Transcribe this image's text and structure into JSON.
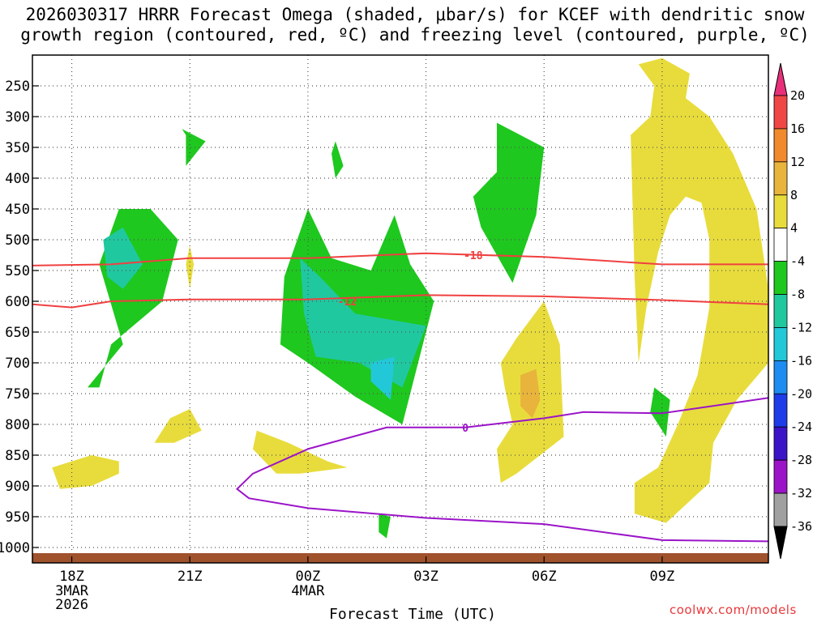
{
  "title_lines": [
    "2026030317 HRRR Forecast Omega (shaded, μbar/s) for KCEF with dendritic snow",
    "growth region (contoured, red, ºC) and freezing level (contoured, purple, ºC)"
  ],
  "credit": "coolwx.com/models",
  "colors": {
    "green": "#1ec81e",
    "teal": "#20c8a0",
    "cyan": "#22c8d8",
    "yellow": "#e8dc3c",
    "gold": "#e8b43c",
    "red_contour": "#f04040",
    "purple_contour": "#9b14c8",
    "terrain": "#a0522d"
  },
  "chart_data": {
    "type": "time-height contour",
    "title": "2026030317 HRRR Forecast Omega (shaded, μbar/s) for KCEF with dendritic snow growth region (contoured, red, ºC) and freezing level (contoured, purple, ºC)",
    "xlabel": "Forecast Time (UTC)",
    "ylabel": "",
    "x_ticks": [
      {
        "hour": 0,
        "label": "18Z",
        "sub": [
          "3MAR",
          "2026"
        ]
      },
      {
        "hour": 3,
        "label": "21Z",
        "sub": []
      },
      {
        "hour": 6,
        "label": "00Z",
        "sub": [
          "4MAR"
        ]
      },
      {
        "hour": 9,
        "label": "03Z",
        "sub": []
      },
      {
        "hour": 12,
        "label": "06Z",
        "sub": []
      },
      {
        "hour": 15,
        "label": "09Z",
        "sub": []
      }
    ],
    "xlim_hours": [
      -1,
      17.7
    ],
    "y_ticks": [
      250,
      300,
      350,
      400,
      450,
      500,
      550,
      600,
      650,
      700,
      750,
      800,
      850,
      900,
      950,
      1000
    ],
    "ylim_hPa": [
      200,
      1025
    ],
    "colorbar": {
      "labels": [
        "20",
        "16",
        "12",
        "8",
        "4",
        "-4",
        "-8",
        "-12",
        "-16",
        "-20",
        "-24",
        "-28",
        "-32",
        "-36"
      ],
      "colors": [
        "#e8307a",
        "#f04646",
        "#f08a2c",
        "#e8b43c",
        "#e8dc3c",
        "#ffffff",
        "#1ec81e",
        "#20c8a0",
        "#22c8d8",
        "#1e8cf0",
        "#1e3ce8",
        "#3c14c8",
        "#9b14c8",
        "#a0a0a0",
        "#000000"
      ]
    },
    "contour_labels": [
      {
        "value": "-18",
        "hour": 10.2,
        "pressure": 525
      },
      {
        "value": "-12",
        "hour": 7.0,
        "pressure": 600
      },
      {
        "value": "0",
        "hour": 10.0,
        "pressure": 805
      }
    ],
    "contours": [
      {
        "name": "-18 C isotherm",
        "points": [
          [
            -1,
            542
          ],
          [
            1,
            540
          ],
          [
            3,
            530
          ],
          [
            6,
            530
          ],
          [
            9,
            522
          ],
          [
            12,
            528
          ],
          [
            15,
            540
          ],
          [
            17.7,
            540
          ]
        ]
      },
      {
        "name": "-12 C isotherm",
        "points": [
          [
            -1,
            605
          ],
          [
            0,
            610
          ],
          [
            1,
            600
          ],
          [
            3,
            597
          ],
          [
            6,
            597
          ],
          [
            9,
            590
          ],
          [
            12,
            592
          ],
          [
            15,
            598
          ],
          [
            17.7,
            605
          ]
        ]
      },
      {
        "name": "0 C freezing level",
        "points": [
          [
            17.7,
            990
          ],
          [
            15,
            988
          ],
          [
            12,
            962
          ],
          [
            9,
            952
          ],
          [
            6,
            936
          ],
          [
            4.5,
            920
          ],
          [
            4.2,
            905
          ],
          [
            4.6,
            880
          ],
          [
            6,
            840
          ],
          [
            8,
            805
          ],
          [
            10,
            805
          ],
          [
            12,
            790
          ],
          [
            13,
            780
          ],
          [
            15,
            782
          ],
          [
            17.7,
            757
          ]
        ]
      }
    ],
    "regions": [
      {
        "name": "-4 region A",
        "color": "green",
        "points": [
          [
            0.4,
            740
          ],
          [
            1.3,
            670
          ],
          [
            0.7,
            540
          ],
          [
            1.2,
            450
          ],
          [
            2.0,
            450
          ],
          [
            2.7,
            500
          ],
          [
            2.3,
            600
          ],
          [
            1.0,
            670
          ],
          [
            0.7,
            740
          ]
        ]
      },
      {
        "name": "-8 region A",
        "color": "teal",
        "points": [
          [
            0.8,
            500
          ],
          [
            1.3,
            480
          ],
          [
            1.8,
            540
          ],
          [
            1.3,
            580
          ],
          [
            0.9,
            560
          ]
        ]
      },
      {
        "name": "-4 region B",
        "color": "green",
        "points": [
          [
            2.8,
            320
          ],
          [
            3.4,
            340
          ],
          [
            2.9,
            380
          ],
          [
            2.9,
            330
          ]
        ]
      },
      {
        "name": "-4 region C",
        "color": "green",
        "points": [
          [
            6.0,
            450
          ],
          [
            6.6,
            530
          ],
          [
            7.6,
            550
          ],
          [
            8.2,
            460
          ],
          [
            8.6,
            540
          ],
          [
            9.2,
            600
          ],
          [
            8.4,
            800
          ],
          [
            7.2,
            755
          ],
          [
            6.0,
            700
          ],
          [
            5.3,
            670
          ],
          [
            5.4,
            560
          ]
        ]
      },
      {
        "name": "-8 region C",
        "color": "teal",
        "points": [
          [
            5.9,
            620
          ],
          [
            5.8,
            530
          ],
          [
            6.3,
            560
          ],
          [
            7.2,
            620
          ],
          [
            9.0,
            640
          ],
          [
            8.4,
            740
          ],
          [
            7.3,
            700
          ],
          [
            6.2,
            690
          ]
        ]
      },
      {
        "name": "-12 region C",
        "color": "cyan",
        "points": [
          [
            7.6,
            700
          ],
          [
            8.2,
            690
          ],
          [
            8.1,
            760
          ],
          [
            7.6,
            730
          ]
        ]
      },
      {
        "name": "-4 region D",
        "color": "green",
        "points": [
          [
            6.7,
            340
          ],
          [
            6.9,
            380
          ],
          [
            6.7,
            400
          ],
          [
            6.6,
            360
          ]
        ]
      },
      {
        "name": "-4 region E",
        "color": "green",
        "points": [
          [
            10.8,
            310
          ],
          [
            12.0,
            350
          ],
          [
            11.8,
            460
          ],
          [
            11.2,
            570
          ],
          [
            10.4,
            480
          ],
          [
            10.2,
            430
          ],
          [
            10.8,
            390
          ]
        ]
      },
      {
        "name": "-4 region F",
        "color": "green",
        "points": [
          [
            14.8,
            740
          ],
          [
            15.2,
            760
          ],
          [
            15.1,
            820
          ],
          [
            14.7,
            780
          ]
        ]
      },
      {
        "name": "-4 region G",
        "color": "green",
        "points": [
          [
            7.8,
            945
          ],
          [
            8.1,
            950
          ],
          [
            8.0,
            985
          ],
          [
            7.8,
            975
          ]
        ]
      },
      {
        "name": "4 region A",
        "color": "yellow",
        "points": [
          [
            14.4,
            215
          ],
          [
            15.0,
            205
          ],
          [
            15.7,
            230
          ],
          [
            15.6,
            270
          ],
          [
            16.2,
            300
          ],
          [
            16.8,
            360
          ],
          [
            17.4,
            450
          ],
          [
            17.7,
            580
          ],
          [
            17.7,
            700
          ],
          [
            16.9,
            760
          ],
          [
            16.3,
            830
          ],
          [
            16.2,
            895
          ],
          [
            15.1,
            960
          ],
          [
            14.3,
            945
          ],
          [
            14.3,
            895
          ],
          [
            14.9,
            870
          ],
          [
            15.4,
            800
          ],
          [
            15.9,
            720
          ],
          [
            16.2,
            610
          ],
          [
            16.2,
            500
          ],
          [
            16.0,
            440
          ],
          [
            15.6,
            430
          ],
          [
            15.2,
            460
          ],
          [
            14.9,
            520
          ],
          [
            14.6,
            610
          ],
          [
            14.4,
            700
          ],
          [
            14.3,
            560
          ],
          [
            14.2,
            330
          ],
          [
            14.7,
            300
          ],
          [
            14.8,
            250
          ]
        ]
      },
      {
        "name": "4 region B",
        "color": "yellow",
        "points": [
          [
            12.0,
            600
          ],
          [
            12.4,
            670
          ],
          [
            12.5,
            820
          ],
          [
            11.9,
            850
          ],
          [
            11.3,
            880
          ],
          [
            10.9,
            895
          ],
          [
            10.8,
            840
          ],
          [
            11.2,
            800
          ],
          [
            11.0,
            740
          ],
          [
            10.9,
            700
          ],
          [
            11.3,
            660
          ]
        ]
      },
      {
        "name": "8 region B",
        "color": "gold",
        "points": [
          [
            11.8,
            710
          ],
          [
            11.9,
            760
          ],
          [
            11.7,
            790
          ],
          [
            11.4,
            770
          ],
          [
            11.4,
            720
          ]
        ]
      },
      {
        "name": "4 region C",
        "color": "yellow",
        "points": [
          [
            -0.5,
            870
          ],
          [
            0.5,
            850
          ],
          [
            1.2,
            860
          ],
          [
            1.2,
            880
          ],
          [
            0.5,
            900
          ],
          [
            -0.3,
            905
          ]
        ]
      },
      {
        "name": "4 region D",
        "color": "yellow",
        "points": [
          [
            2.5,
            790
          ],
          [
            3.0,
            775
          ],
          [
            3.3,
            810
          ],
          [
            2.6,
            830
          ],
          [
            2.1,
            830
          ]
        ]
      },
      {
        "name": "4 region E",
        "color": "yellow",
        "points": [
          [
            4.7,
            810
          ],
          [
            5.5,
            830
          ],
          [
            6.5,
            860
          ],
          [
            7.0,
            870
          ],
          [
            5.8,
            880
          ],
          [
            5.2,
            880
          ],
          [
            4.6,
            840
          ]
        ]
      },
      {
        "name": "4 region F",
        "color": "yellow",
        "points": [
          [
            3.0,
            510
          ],
          [
            3.1,
            540
          ],
          [
            3.0,
            580
          ],
          [
            2.9,
            540
          ]
        ]
      }
    ]
  }
}
